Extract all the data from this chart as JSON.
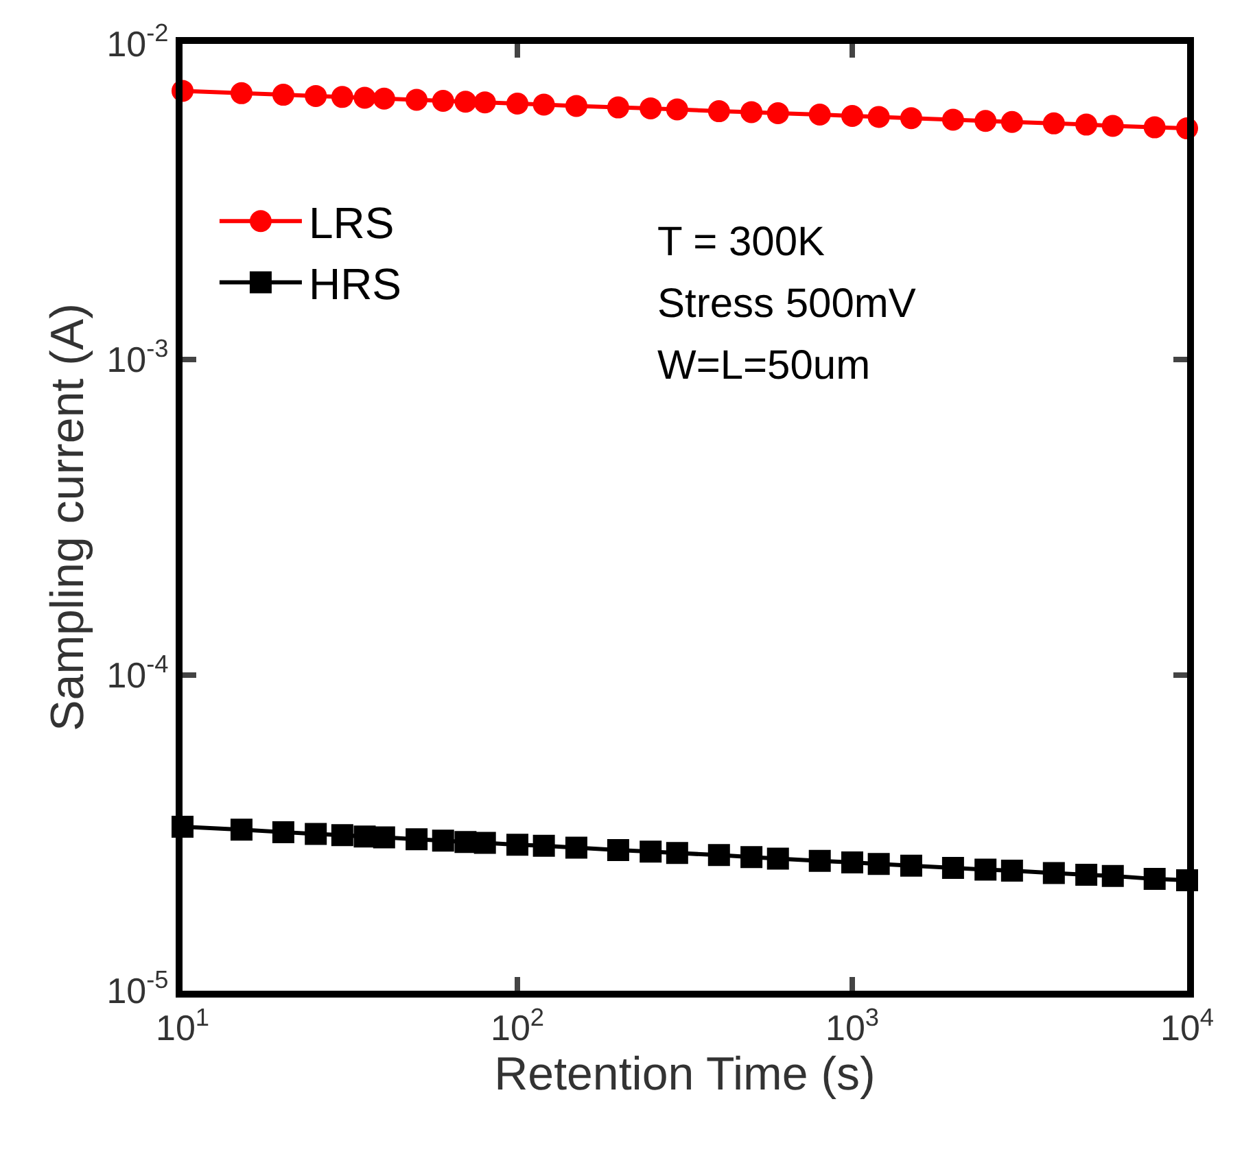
{
  "chart_data": {
    "type": "line",
    "xlabel": "Retention Time (s)",
    "ylabel": "Sampling current (A)",
    "log": "xy",
    "xlim": [
      10,
      10000
    ],
    "xticks": [
      {
        "value": 10,
        "label": "10$^{1}$"
      },
      {
        "value": 100,
        "label": "10$^{2}$"
      },
      {
        "value": 1000,
        "label": "10$^{3}$"
      },
      {
        "value": 10000,
        "label": "10$^{4}$"
      }
    ],
    "ylim": [
      1e-05,
      0.01
    ],
    "yticks": [
      {
        "value": 1e-05,
        "label": "10$^{-5}$"
      },
      {
        "value": 0.0001,
        "label": "10$^{-4}$"
      },
      {
        "value": 0.001,
        "label": "10$^{-3}$"
      },
      {
        "value": 0.01,
        "label": "10$^{-2}$"
      }
    ],
    "x": [
      10,
      15,
      20,
      25,
      30,
      35,
      40,
      50,
      60,
      70,
      80,
      100,
      120,
      150,
      200,
      250,
      300,
      400,
      500,
      600,
      800,
      1000,
      1200,
      1500,
      2000,
      2500,
      3000,
      4000,
      5000,
      6000,
      8000,
      10000
    ],
    "series": [
      {
        "name": "LRS",
        "color": "#ff0000",
        "marker": "circle",
        "values": [
          0.0071,
          0.00698,
          0.0069,
          0.00684,
          0.00679,
          0.00675,
          0.00671,
          0.00665,
          0.0066,
          0.00656,
          0.00653,
          0.00647,
          0.00642,
          0.00636,
          0.00629,
          0.00625,
          0.0062,
          0.00612,
          0.00608,
          0.00603,
          0.00597,
          0.00591,
          0.00587,
          0.00582,
          0.00575,
          0.0057,
          0.00566,
          0.0056,
          0.00555,
          0.0055,
          0.00544,
          0.0054
        ]
      },
      {
        "name": "HRS",
        "color": "#000000",
        "marker": "square",
        "values": [
          3.31e-05,
          3.24e-05,
          3.18e-05,
          3.14e-05,
          3.11e-05,
          3.08e-05,
          3.06e-05,
          3.02e-05,
          2.99e-05,
          2.96e-05,
          2.94e-05,
          2.9e-05,
          2.88e-05,
          2.84e-05,
          2.79e-05,
          2.76e-05,
          2.73e-05,
          2.69e-05,
          2.65e-05,
          2.62e-05,
          2.58e-05,
          2.55e-05,
          2.52e-05,
          2.49e-05,
          2.45e-05,
          2.42e-05,
          2.4e-05,
          2.36e-05,
          2.33e-05,
          2.31e-05,
          2.26e-05,
          2.24e-05
        ]
      }
    ],
    "legend": "left",
    "grid": false,
    "annotations": [
      "T = 300K",
      "Stress 500mV",
      "W=L=50um"
    ]
  }
}
